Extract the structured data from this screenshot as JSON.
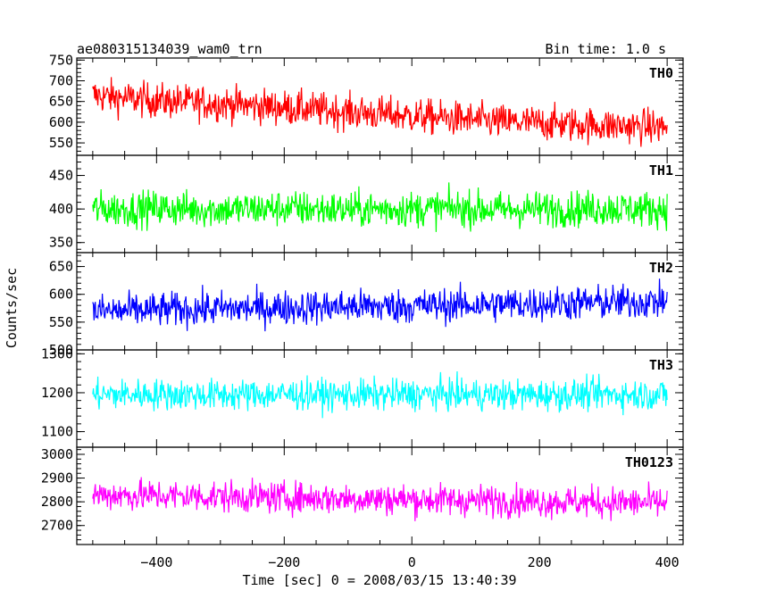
{
  "chart_data": {
    "type": "line",
    "title": "ae080315134039_wam0_trn",
    "subtitle": "Bin time: 1.0 s",
    "xlabel": "Time [sec] 0 = 2008/03/15 13:40:39",
    "ylabel": "Counts/sec",
    "xlim": [
      -525,
      425
    ],
    "xticks": [
      -400,
      -200,
      0,
      200,
      400
    ],
    "grid": false,
    "panels": [
      {
        "name": "TH0",
        "color": "#ff0000",
        "ylim": [
          520,
          755
        ],
        "yticks": [
          550,
          600,
          650,
          700,
          750
        ],
        "x": [
          -500,
          -450,
          -400,
          -350,
          -300,
          -250,
          -200,
          -150,
          -100,
          -50,
          0,
          50,
          100,
          150,
          200,
          250,
          300,
          350,
          400
        ],
        "values": [
          665,
          658,
          652,
          648,
          645,
          640,
          635,
          630,
          625,
          620,
          615,
          610,
          605,
          600,
          598,
          595,
          592,
          590,
          588
        ],
        "spread": 38
      },
      {
        "name": "TH1",
        "color": "#00ff00",
        "ylim": [
          335,
          480
        ],
        "yticks": [
          350,
          400,
          450
        ],
        "x": [
          -500,
          -450,
          -400,
          -350,
          -300,
          -250,
          -200,
          -150,
          -100,
          -50,
          0,
          50,
          100,
          150,
          200,
          250,
          300,
          350,
          400
        ],
        "values": [
          400,
          400,
          401,
          400,
          399,
          400,
          401,
          400,
          399,
          400,
          400,
          401,
          400,
          399,
          400,
          400,
          401,
          400,
          400
        ],
        "spread": 24
      },
      {
        "name": "TH2",
        "color": "#0000ff",
        "ylim": [
          500,
          675
        ],
        "yticks": [
          500,
          550,
          600,
          650
        ],
        "x": [
          -500,
          -450,
          -400,
          -350,
          -300,
          -250,
          -200,
          -150,
          -100,
          -50,
          0,
          50,
          100,
          150,
          200,
          250,
          300,
          350,
          400
        ],
        "values": [
          570,
          570,
          572,
          573,
          574,
          575,
          576,
          577,
          578,
          578,
          579,
          580,
          581,
          582,
          583,
          584,
          585,
          586,
          588
        ],
        "spread": 28
      },
      {
        "name": "TH3",
        "color": "#00ffff",
        "ylim": [
          1060,
          1310
        ],
        "yticks": [
          1100,
          1200,
          1300
        ],
        "x": [
          -500,
          -450,
          -400,
          -350,
          -300,
          -250,
          -200,
          -150,
          -100,
          -50,
          0,
          50,
          100,
          150,
          200,
          250,
          300,
          350,
          400
        ],
        "values": [
          1195,
          1195,
          1196,
          1195,
          1194,
          1195,
          1196,
          1195,
          1194,
          1195,
          1195,
          1196,
          1195,
          1194,
          1195,
          1195,
          1196,
          1195,
          1195
        ],
        "spread": 36
      },
      {
        "name": "TH0123",
        "color": "#ff00ff",
        "ylim": [
          2620,
          3030
        ],
        "yticks": [
          2700,
          2800,
          2900,
          3000
        ],
        "x": [
          -500,
          -450,
          -400,
          -350,
          -300,
          -250,
          -200,
          -150,
          -100,
          -50,
          0,
          50,
          100,
          150,
          200,
          250,
          300,
          350,
          400
        ],
        "values": [
          2830,
          2828,
          2826,
          2824,
          2822,
          2820,
          2818,
          2816,
          2814,
          2812,
          2810,
          2808,
          2806,
          2804,
          2802,
          2800,
          2798,
          2796,
          2795
        ],
        "spread": 60
      }
    ]
  }
}
